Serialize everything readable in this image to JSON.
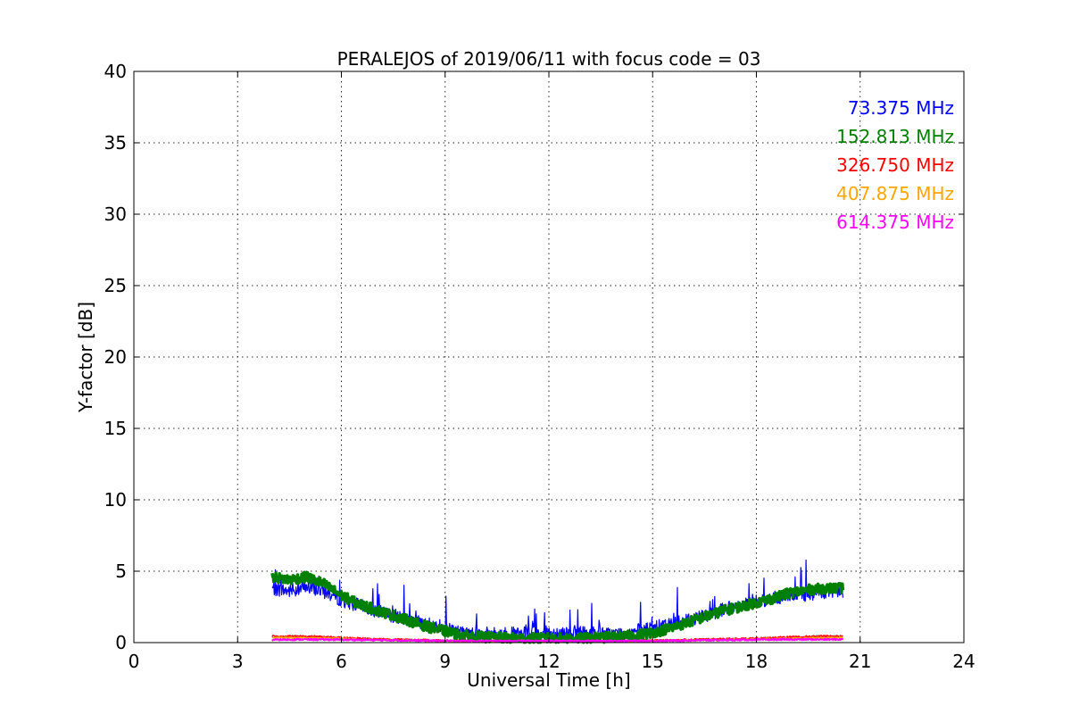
{
  "chart_data": {
    "type": "line",
    "title": "PERALEJOS of 2019/06/11 with focus code = 03",
    "xlabel": "Universal Time [h]",
    "ylabel": "Y-factor [dB]",
    "xlim": [
      0,
      24
    ],
    "ylim": [
      0,
      40
    ],
    "xticks": [
      "0",
      "3",
      "6",
      "9",
      "12",
      "15",
      "18",
      "21",
      "24"
    ],
    "yticks": [
      "0",
      "5",
      "10",
      "15",
      "20",
      "25",
      "30",
      "35",
      "40"
    ],
    "grid": true,
    "legend_placement": "top-right",
    "series": [
      {
        "name": "73.375 MHz",
        "color": "#0000ff",
        "x": [
          4.0,
          4.5,
          5.0,
          5.5,
          6.0,
          6.5,
          7.0,
          7.5,
          8.0,
          8.5,
          9.0,
          9.5,
          10.0,
          10.5,
          11.0,
          11.5,
          12.0,
          12.5,
          13.0,
          13.5,
          14.0,
          14.5,
          15.0,
          15.5,
          16.0,
          16.5,
          17.0,
          17.5,
          18.0,
          18.5,
          19.0,
          19.5,
          20.0,
          20.5
        ],
        "values": [
          3.8,
          3.6,
          3.9,
          3.6,
          3.0,
          2.6,
          2.2,
          1.9,
          1.6,
          1.3,
          1.0,
          0.7,
          0.6,
          0.6,
          0.6,
          0.6,
          0.7,
          0.7,
          0.7,
          0.6,
          0.6,
          0.8,
          1.0,
          1.3,
          1.6,
          1.9,
          2.3,
          2.6,
          2.9,
          3.1,
          3.3,
          3.4,
          3.5,
          3.6
        ]
      },
      {
        "name": "152.813 MHz",
        "color": "#008000",
        "x": [
          4.0,
          4.5,
          5.0,
          5.5,
          6.0,
          6.5,
          7.0,
          7.5,
          8.0,
          8.5,
          9.0,
          9.5,
          10.0,
          10.5,
          11.0,
          11.5,
          12.0,
          12.5,
          13.0,
          13.5,
          14.0,
          14.5,
          15.0,
          15.5,
          16.0,
          16.5,
          17.0,
          17.5,
          18.0,
          18.5,
          19.0,
          19.5,
          20.0,
          20.5
        ],
        "values": [
          4.6,
          4.4,
          4.6,
          4.1,
          3.3,
          2.7,
          2.3,
          1.9,
          1.5,
          1.1,
          0.8,
          0.5,
          0.4,
          0.35,
          0.3,
          0.3,
          0.3,
          0.3,
          0.3,
          0.35,
          0.4,
          0.5,
          0.7,
          1.0,
          1.4,
          1.8,
          2.2,
          2.5,
          2.8,
          3.1,
          3.5,
          3.7,
          3.8,
          3.8
        ]
      },
      {
        "name": "326.750 MHz",
        "color": "#ff0000",
        "x": [
          4.0,
          5.0,
          6.0,
          7.0,
          8.0,
          9.0,
          10.0,
          11.0,
          12.0,
          13.0,
          14.0,
          15.0,
          16.0,
          17.0,
          18.0,
          19.0,
          20.0,
          20.5
        ],
        "values": [
          0.45,
          0.45,
          0.35,
          0.25,
          0.2,
          0.15,
          0.12,
          0.1,
          0.1,
          0.1,
          0.12,
          0.15,
          0.2,
          0.25,
          0.3,
          0.4,
          0.45,
          0.45
        ]
      },
      {
        "name": "407.875 MHz",
        "color": "#ffa500",
        "x": [
          4.0,
          5.0,
          6.0,
          7.0,
          8.0,
          9.0,
          10.0,
          11.0,
          12.0,
          13.0,
          14.0,
          15.0,
          16.0,
          17.0,
          18.0,
          19.0,
          20.0,
          20.5
        ],
        "values": [
          0.35,
          0.35,
          0.3,
          0.2,
          0.15,
          0.1,
          0.1,
          0.08,
          0.08,
          0.08,
          0.1,
          0.12,
          0.15,
          0.2,
          0.25,
          0.3,
          0.35,
          0.35
        ]
      },
      {
        "name": "614.375 MHz",
        "color": "#ff00ff",
        "x": [
          4.0,
          5.0,
          6.0,
          7.0,
          8.0,
          9.0,
          10.0,
          11.0,
          12.0,
          13.0,
          14.0,
          15.0,
          16.0,
          17.0,
          18.0,
          19.0,
          20.0,
          20.5
        ],
        "values": [
          0.2,
          0.22,
          0.2,
          0.18,
          0.15,
          0.12,
          0.12,
          0.12,
          0.12,
          0.12,
          0.12,
          0.12,
          0.15,
          0.18,
          0.2,
          0.22,
          0.22,
          0.22
        ]
      }
    ]
  }
}
